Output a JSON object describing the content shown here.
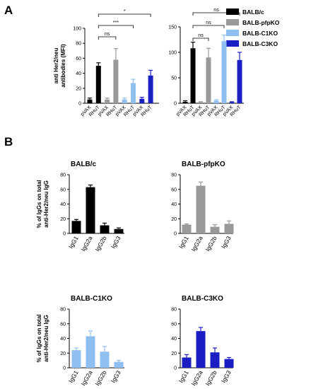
{
  "panel_a_label": "A",
  "panel_b_label": "B",
  "colors": {
    "BALB/c": "#000000",
    "BALB-pfpKO": "#999999",
    "BALB-C1KO": "#8fbff0",
    "BALB-C3KO": "#1a1fc4"
  },
  "legend": [
    "BALB/c",
    "BALB-pfpKO",
    "BALB-C1KO",
    "BALB-C3KO"
  ],
  "chart_data": [
    {
      "type": "bar",
      "id": "A-left",
      "ylabel": "anti Her2/neu antibodies (MFI)",
      "ylim": [
        0,
        100
      ],
      "yticks": [
        0,
        20,
        40,
        60,
        80,
        100
      ],
      "categories": [
        "pVAX",
        "RHuT",
        "pVAX",
        "RHuT",
        "pVAX",
        "RHuT",
        "pVAX",
        "RHuT"
      ],
      "groups": [
        "BALB/c",
        "BALB/c",
        "BALB-pfpKO",
        "BALB-pfpKO",
        "BALB-C1KO",
        "BALB-C1KO",
        "BALB-C3KO",
        "BALB-C3KO"
      ],
      "values": [
        5,
        50,
        5,
        58,
        5,
        27,
        6,
        37
      ],
      "errors": [
        2,
        4,
        2,
        15,
        2,
        5,
        2,
        7
      ],
      "significance": [
        {
          "from": 1,
          "to": 7,
          "label": "*"
        },
        {
          "from": 1,
          "to": 5,
          "label": "***"
        },
        {
          "from": 1,
          "to": 3,
          "label": "ns"
        }
      ]
    },
    {
      "type": "bar",
      "id": "A-right",
      "ylim": [
        0,
        150
      ],
      "yticks": [
        0,
        50,
        100,
        150
      ],
      "categories": [
        "pVAX",
        "RHuT",
        "pVAX",
        "RHuT",
        "pVAX",
        "RHuT",
        "pVAX",
        "RHuT"
      ],
      "groups": [
        "BALB/c",
        "BALB/c",
        "BALB-pfpKO",
        "BALB-pfpKO",
        "BALB-C1KO",
        "BALB-C1KO",
        "BALB-C3KO",
        "BALB-C3KO"
      ],
      "values": [
        3,
        108,
        2,
        90,
        5,
        122,
        2,
        85
      ],
      "errors": [
        2,
        12,
        1,
        18,
        2,
        12,
        1,
        15
      ],
      "significance": [
        {
          "from": 1,
          "to": 7,
          "label": "ns"
        },
        {
          "from": 1,
          "to": 5,
          "label": "ns"
        },
        {
          "from": 1,
          "to": 3,
          "label": "ns"
        }
      ]
    },
    {
      "type": "bar",
      "id": "B-BALB/c",
      "title": "BALB/c",
      "ylabel": "% of IgGs on total anti-Her2/neu IgG",
      "group": "BALB/c",
      "ylim": [
        0,
        80
      ],
      "yticks": [
        0,
        20,
        40,
        60,
        80
      ],
      "categories": [
        "IgG1",
        "IgG2a",
        "IgG2b",
        "IgG3"
      ],
      "values": [
        17,
        63,
        11,
        6
      ],
      "errors": [
        2,
        3,
        3,
        1.5
      ]
    },
    {
      "type": "bar",
      "id": "B-BALB-pfpKO",
      "title": "BALB-pfpKO",
      "group": "BALB-pfpKO",
      "ylim": [
        0,
        80
      ],
      "yticks": [
        0,
        20,
        40,
        60,
        80
      ],
      "categories": [
        "IgG1",
        "IgG2a",
        "IgG2b",
        "IgG3"
      ],
      "values": [
        12,
        65,
        9,
        13
      ],
      "errors": [
        1,
        5,
        3,
        4
      ]
    },
    {
      "type": "bar",
      "id": "B-BALB-C1KO",
      "title": "BALB-C1KO",
      "ylabel": "% of IgGs on total anti-Her2/neu IgG",
      "group": "BALB-C1KO",
      "ylim": [
        0,
        80
      ],
      "yticks": [
        0,
        20,
        40,
        60,
        80
      ],
      "categories": [
        "IgG1",
        "IgG2a",
        "IgG2b",
        "IgG3"
      ],
      "values": [
        24,
        43,
        22,
        8
      ],
      "errors": [
        3,
        7,
        7,
        2
      ]
    },
    {
      "type": "bar",
      "id": "B-BALB-C3KO",
      "title": "BALB-C3KO",
      "group": "BALB-C3KO",
      "ylim": [
        0,
        80
      ],
      "yticks": [
        0,
        20,
        40,
        60,
        80
      ],
      "categories": [
        "IgG1",
        "IgG2a",
        "IgG2b",
        "IgG3"
      ],
      "values": [
        14,
        50,
        21,
        12
      ],
      "errors": [
        4,
        5,
        6,
        2
      ]
    }
  ]
}
